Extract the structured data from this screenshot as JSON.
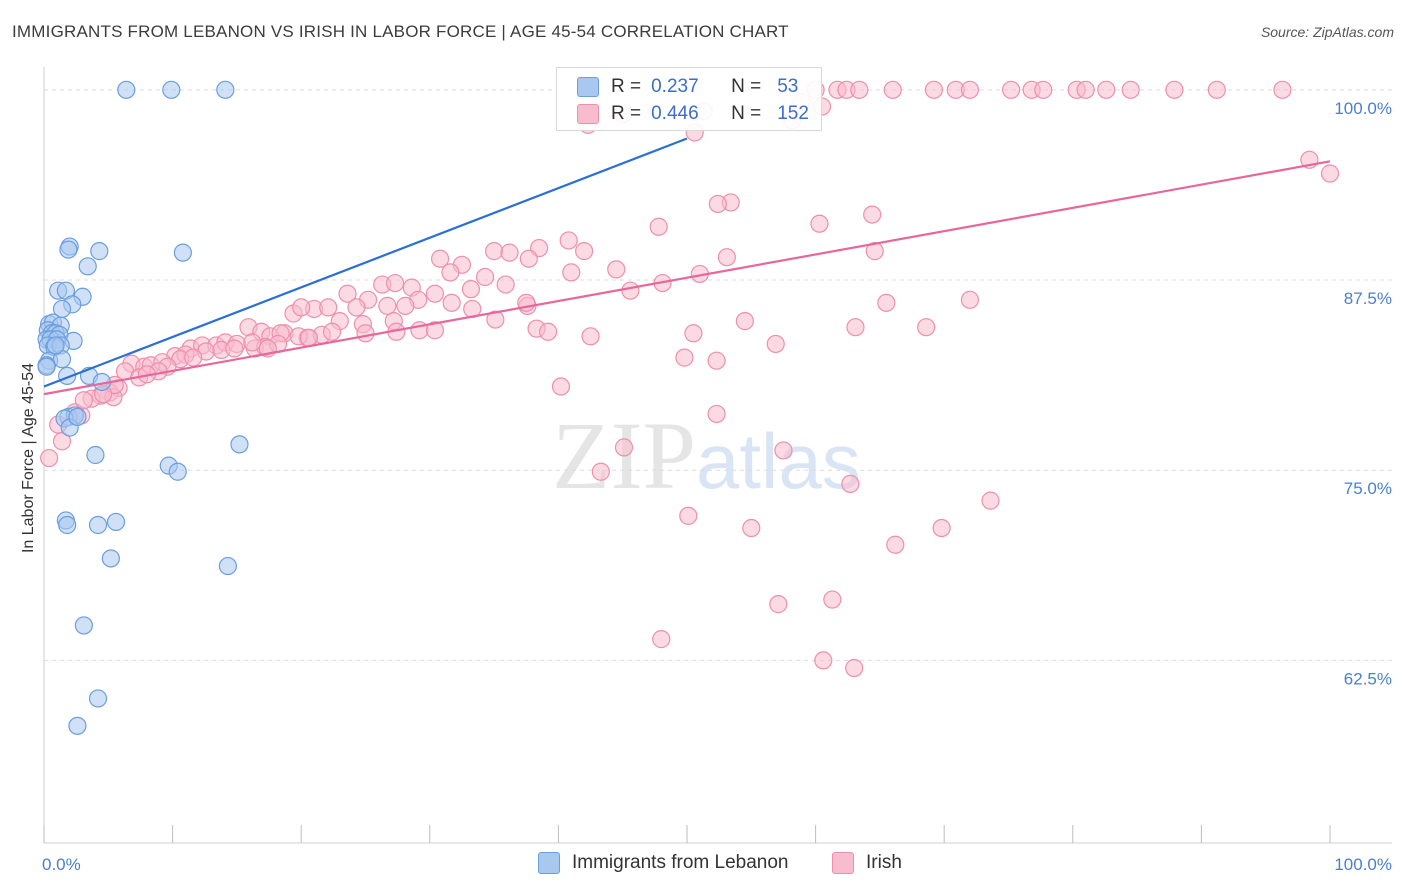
{
  "title": "IMMIGRANTS FROM LEBANON VS IRISH IN LABOR FORCE | AGE 45-54 CORRELATION CHART",
  "source": "Source: ZipAtlas.com",
  "watermark": {
    "zip": "ZIP",
    "atlas": "atlas"
  },
  "legend": {
    "rows": [
      {
        "r_label": "R =",
        "r_value": "0.237",
        "n_label": "N =",
        "n_value": "53"
      },
      {
        "r_label": "R =",
        "r_value": "0.446",
        "n_label": "N =",
        "n_value": "152"
      }
    ]
  },
  "bottom_legend": [
    "Immigrants from Lebanon",
    "Irish"
  ],
  "colors": {
    "lebanon_fill": "#a9c8f0",
    "lebanon_stroke": "#6a9ee0",
    "lebanon_line": "#2b6fd6",
    "irish_fill": "#f7bccd",
    "irish_stroke": "#ee8fab",
    "irish_line": "#e8679a",
    "tick_text": "#4a7fd0",
    "grid": "#dcdcdc"
  },
  "chart_data": {
    "type": "scatter",
    "title": "IMMIGRANTS FROM LEBANON VS IRISH IN LABOR FORCE | AGE 45-54 CORRELATION CHART",
    "xlabel": "",
    "ylabel": "In Labor Force | Age 45-54",
    "xlim": [
      0,
      100
    ],
    "ylim": [
      50.5,
      101.5
    ],
    "x_tick_labels": [
      {
        "value": 0,
        "label": "0.0%"
      },
      {
        "value": 100,
        "label": "100.0%"
      }
    ],
    "y_ticks": [
      {
        "value": 100,
        "label": "100.0%"
      },
      {
        "value": 87.5,
        "label": "87.5%"
      },
      {
        "value": 75,
        "label": "75.0%"
      },
      {
        "value": 62.5,
        "label": "62.5%"
      }
    ],
    "series": [
      {
        "name": "Immigrants from Lebanon",
        "trend": {
          "x0": 0,
          "y0": 80.5,
          "x1": 50,
          "y1": 96.8
        },
        "points": [
          [
            6.4,
            100
          ],
          [
            9.9,
            100
          ],
          [
            14.1,
            100
          ],
          [
            2.0,
            89.7
          ],
          [
            1.9,
            89.5
          ],
          [
            4.3,
            89.4
          ],
          [
            10.8,
            89.3
          ],
          [
            3.4,
            88.4
          ],
          [
            1.1,
            86.8
          ],
          [
            1.7,
            86.8
          ],
          [
            3.0,
            86.4
          ],
          [
            2.2,
            85.9
          ],
          [
            1.4,
            85.6
          ],
          [
            0.4,
            84.6
          ],
          [
            0.7,
            84.7
          ],
          [
            1.3,
            84.5
          ],
          [
            0.3,
            84.2
          ],
          [
            0.6,
            84.0
          ],
          [
            0.9,
            84.0
          ],
          [
            1.2,
            83.9
          ],
          [
            0.2,
            83.6
          ],
          [
            0.5,
            83.6
          ],
          [
            1.0,
            83.6
          ],
          [
            2.3,
            83.5
          ],
          [
            0.3,
            83.2
          ],
          [
            0.8,
            83.1
          ],
          [
            1.3,
            83.2
          ],
          [
            0.4,
            82.2
          ],
          [
            1.4,
            82.3
          ],
          [
            0.2,
            81.9
          ],
          [
            3.5,
            81.2
          ],
          [
            1.8,
            81.2
          ],
          [
            4.5,
            80.8
          ],
          [
            1.9,
            78.5
          ],
          [
            2.4,
            78.6
          ],
          [
            1.6,
            78.4
          ],
          [
            2.0,
            77.8
          ],
          [
            4.0,
            76.0
          ],
          [
            15.2,
            76.7
          ],
          [
            9.7,
            75.3
          ],
          [
            10.4,
            74.9
          ],
          [
            1.7,
            71.7
          ],
          [
            1.8,
            71.4
          ],
          [
            4.2,
            71.4
          ],
          [
            5.6,
            71.6
          ],
          [
            5.2,
            69.2
          ],
          [
            14.3,
            68.7
          ],
          [
            3.1,
            64.8
          ],
          [
            4.2,
            60.0
          ],
          [
            2.6,
            58.2
          ],
          [
            0.2,
            81.8
          ],
          [
            0.9,
            83.2
          ],
          [
            2.6,
            78.5
          ]
        ]
      },
      {
        "name": "Irish",
        "trend": {
          "x0": 0,
          "y0": 80.0,
          "x1": 100,
          "y1": 95.3
        },
        "points": [
          [
            60.0,
            100
          ],
          [
            61.7,
            100
          ],
          [
            62.4,
            100
          ],
          [
            63.4,
            100
          ],
          [
            66.0,
            100
          ],
          [
            69.2,
            100
          ],
          [
            70.9,
            100
          ],
          [
            72.0,
            100
          ],
          [
            75.2,
            100
          ],
          [
            76.8,
            100
          ],
          [
            77.7,
            100
          ],
          [
            80.3,
            100
          ],
          [
            81.0,
            100
          ],
          [
            82.6,
            100
          ],
          [
            84.5,
            100
          ],
          [
            87.9,
            100
          ],
          [
            91.2,
            100
          ],
          [
            96.3,
            100
          ],
          [
            58.9,
            99.2
          ],
          [
            60.5,
            98.9
          ],
          [
            51.3,
            98.6
          ],
          [
            45.0,
            98.4
          ],
          [
            58.2,
            98.0
          ],
          [
            42.3,
            97.7
          ],
          [
            50.6,
            97.2
          ],
          [
            98.4,
            95.4
          ],
          [
            100,
            94.5
          ],
          [
            53.4,
            92.6
          ],
          [
            52.4,
            92.5
          ],
          [
            64.4,
            91.8
          ],
          [
            60.3,
            91.2
          ],
          [
            47.8,
            91.0
          ],
          [
            64.6,
            89.4
          ],
          [
            40.8,
            90.1
          ],
          [
            35.0,
            89.4
          ],
          [
            38.5,
            89.6
          ],
          [
            36.2,
            89.3
          ],
          [
            30.8,
            88.9
          ],
          [
            37.7,
            88.9
          ],
          [
            42.0,
            89.4
          ],
          [
            53.1,
            89.0
          ],
          [
            32.5,
            88.5
          ],
          [
            31.6,
            88.0
          ],
          [
            34.3,
            87.7
          ],
          [
            35.9,
            87.2
          ],
          [
            41.0,
            88.0
          ],
          [
            44.5,
            88.2
          ],
          [
            51.0,
            87.9
          ],
          [
            33.2,
            86.9
          ],
          [
            26.3,
            87.2
          ],
          [
            27.3,
            87.3
          ],
          [
            28.6,
            87.0
          ],
          [
            30.4,
            86.6
          ],
          [
            23.6,
            86.6
          ],
          [
            25.2,
            86.2
          ],
          [
            29.1,
            86.2
          ],
          [
            31.7,
            86.0
          ],
          [
            21.0,
            85.6
          ],
          [
            22.1,
            85.7
          ],
          [
            24.3,
            85.7
          ],
          [
            26.7,
            85.8
          ],
          [
            28.1,
            85.8
          ],
          [
            33.3,
            85.6
          ],
          [
            37.6,
            85.8
          ],
          [
            19.4,
            85.3
          ],
          [
            20.0,
            85.7
          ],
          [
            23.0,
            84.8
          ],
          [
            24.8,
            84.6
          ],
          [
            27.2,
            84.8
          ],
          [
            37.5,
            86.0
          ],
          [
            48.1,
            87.3
          ],
          [
            45.6,
            86.8
          ],
          [
            18.7,
            84.0
          ],
          [
            20.5,
            83.7
          ],
          [
            21.6,
            83.9
          ],
          [
            22.4,
            84.1
          ],
          [
            25.0,
            84.0
          ],
          [
            27.4,
            84.1
          ],
          [
            29.2,
            84.2
          ],
          [
            35.1,
            84.9
          ],
          [
            15.9,
            84.4
          ],
          [
            16.9,
            84.1
          ],
          [
            17.6,
            83.8
          ],
          [
            18.4,
            84.0
          ],
          [
            19.8,
            83.8
          ],
          [
            30.4,
            84.2
          ],
          [
            38.3,
            84.3
          ],
          [
            39.2,
            84.1
          ],
          [
            11.4,
            83.0
          ],
          [
            12.3,
            83.2
          ],
          [
            13.4,
            83.2
          ],
          [
            14.1,
            83.4
          ],
          [
            15.0,
            83.3
          ],
          [
            16.4,
            83.0
          ],
          [
            17.2,
            83.1
          ],
          [
            18.2,
            83.3
          ],
          [
            10.2,
            82.5
          ],
          [
            11.0,
            82.6
          ],
          [
            12.6,
            82.8
          ],
          [
            13.8,
            82.9
          ],
          [
            14.8,
            83.0
          ],
          [
            16.2,
            83.4
          ],
          [
            17.4,
            83.0
          ],
          [
            20.6,
            83.7
          ],
          [
            6.8,
            82.0
          ],
          [
            7.8,
            81.8
          ],
          [
            8.3,
            81.9
          ],
          [
            9.2,
            82.1
          ],
          [
            10.6,
            82.3
          ],
          [
            11.6,
            82.4
          ],
          [
            9.6,
            81.8
          ],
          [
            8.9,
            81.5
          ],
          [
            6.3,
            81.5
          ],
          [
            7.4,
            81.1
          ],
          [
            8.0,
            81.3
          ],
          [
            5.8,
            80.4
          ],
          [
            5.1,
            80.1
          ],
          [
            4.4,
            79.9
          ],
          [
            3.7,
            79.7
          ],
          [
            5.4,
            79.8
          ],
          [
            2.4,
            78.8
          ],
          [
            2.9,
            78.6
          ],
          [
            1.1,
            78.0
          ],
          [
            1.4,
            76.9
          ],
          [
            0.4,
            75.8
          ],
          [
            3.1,
            79.6
          ],
          [
            5.5,
            80.6
          ],
          [
            4.6,
            80.0
          ],
          [
            42.5,
            83.8
          ],
          [
            40.2,
            80.5
          ],
          [
            49.8,
            82.4
          ],
          [
            52.3,
            82.2
          ],
          [
            56.9,
            83.3
          ],
          [
            50.5,
            84.0
          ],
          [
            54.5,
            84.8
          ],
          [
            63.1,
            84.4
          ],
          [
            65.5,
            86.0
          ],
          [
            68.6,
            84.4
          ],
          [
            72.0,
            86.2
          ],
          [
            45.1,
            76.5
          ],
          [
            43.3,
            74.9
          ],
          [
            52.3,
            78.7
          ],
          [
            57.5,
            76.3
          ],
          [
            62.7,
            74.1
          ],
          [
            73.6,
            73.0
          ],
          [
            50.1,
            72.0
          ],
          [
            55.0,
            71.2
          ],
          [
            66.2,
            70.1
          ],
          [
            69.8,
            71.2
          ],
          [
            57.1,
            66.2
          ],
          [
            61.3,
            66.5
          ],
          [
            48.0,
            63.9
          ],
          [
            60.6,
            62.5
          ],
          [
            63.0,
            62.0
          ]
        ]
      }
    ]
  }
}
